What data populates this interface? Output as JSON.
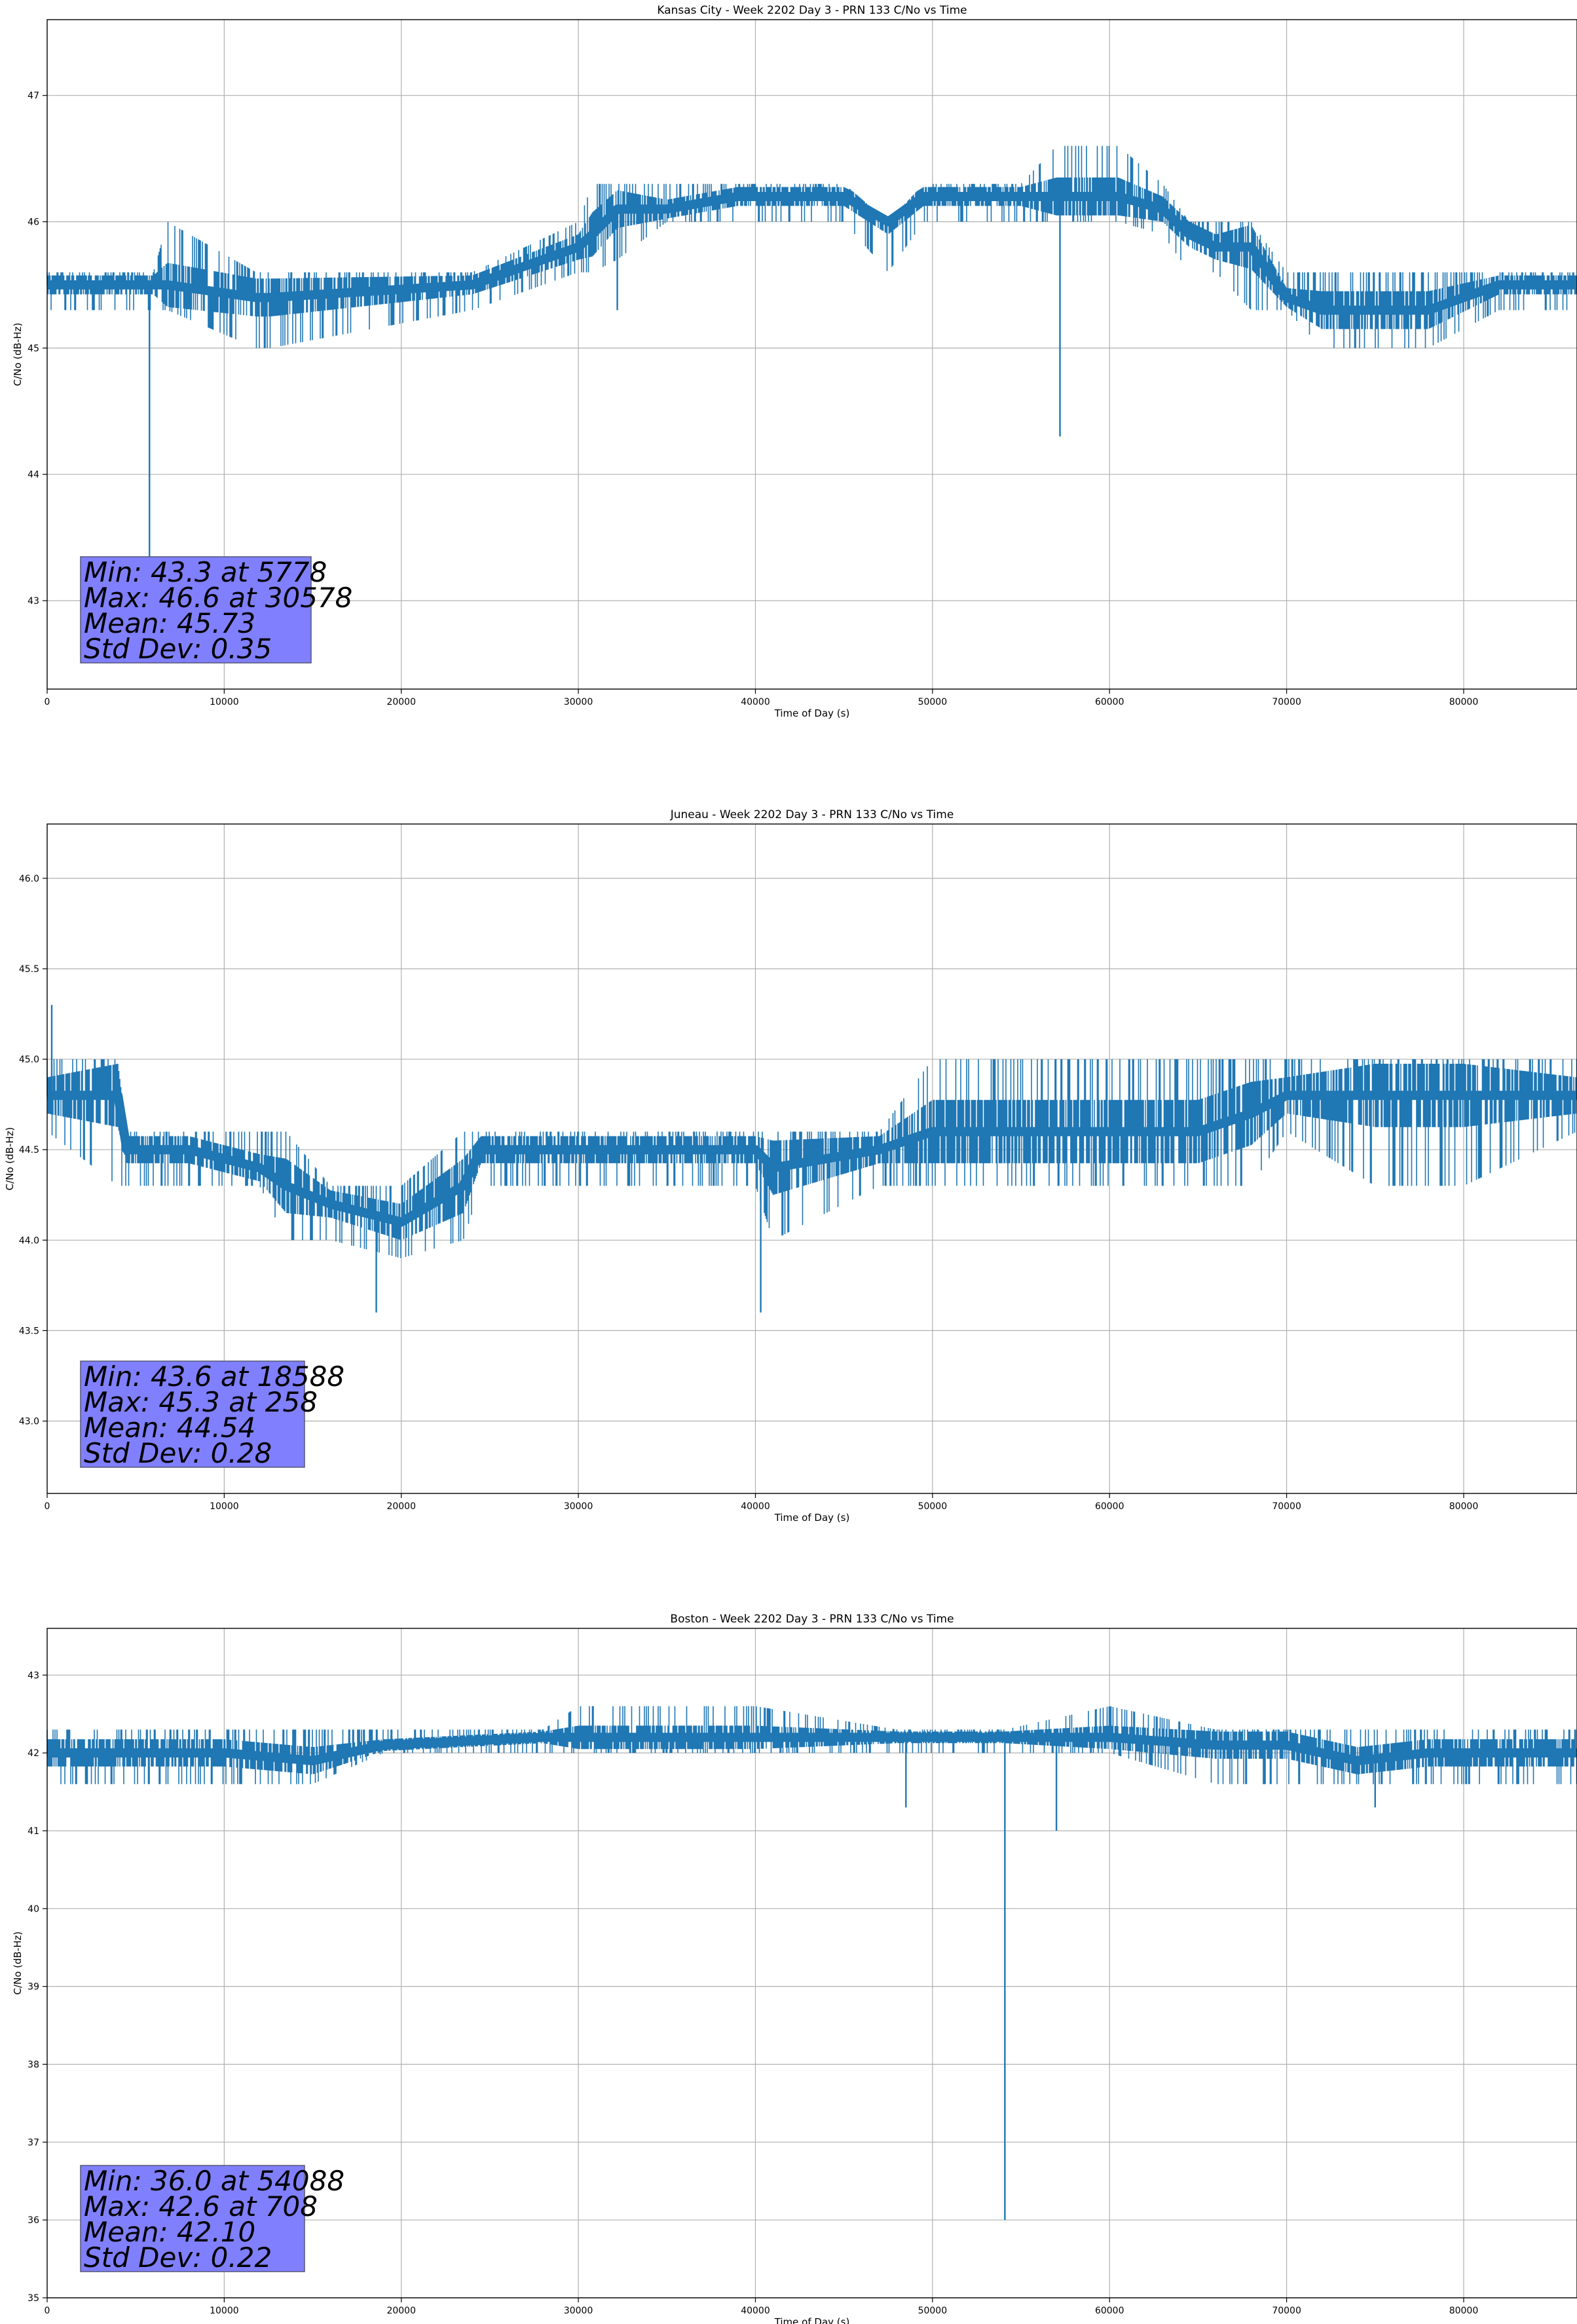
{
  "chart_data": [
    {
      "type": "line",
      "title": "Kansas City - Week 2202 Day 3 - PRN 133 C/No vs Time",
      "xlabel": "Time of Day (s)",
      "ylabel": "C/No (dB-Hz)",
      "xlim": [
        0,
        86400
      ],
      "ylim": [
        42.3,
        47.6
      ],
      "xticks": [
        0,
        10000,
        20000,
        30000,
        40000,
        50000,
        60000,
        70000,
        80000
      ],
      "xtick_labels": [
        "0",
        "10000",
        "20000",
        "30000",
        "40000",
        "50000",
        "60000",
        "70000",
        "80000"
      ],
      "yticks": [
        43,
        44,
        45,
        46,
        47
      ],
      "ytick_labels": [
        "43",
        "44",
        "45",
        "46",
        "47"
      ],
      "grid": true,
      "line_color": "#1f77b4",
      "series": [
        {
          "x": [
            0,
            6000,
            6800,
            11800,
            12600,
            24000,
            30000,
            30800,
            32200,
            35000,
            39000,
            45000,
            47500,
            49500,
            55000,
            57000,
            60500,
            63000,
            64500,
            66000,
            68000,
            70000,
            72000,
            78000,
            82000,
            86400
          ],
          "y": [
            45.5,
            45.5,
            45.5,
            45.4,
            45.4,
            45.5,
            45.8,
            45.9,
            46.1,
            46.1,
            46.2,
            46.2,
            46.0,
            46.2,
            46.2,
            46.2,
            46.2,
            46.1,
            45.9,
            45.8,
            45.8,
            45.4,
            45.3,
            45.3,
            45.5,
            45.5
          ],
          "band_low": [
            45.3,
            45.3,
            45.3,
            45.0,
            45.0,
            45.3,
            45.6,
            45.6,
            45.7,
            46.0,
            46.0,
            46.0,
            45.6,
            46.0,
            46.0,
            46.0,
            46.0,
            45.9,
            45.6,
            45.6,
            45.3,
            45.3,
            45.0,
            45.0,
            45.3,
            45.3
          ],
          "band_high": [
            45.6,
            45.6,
            46.0,
            45.6,
            45.6,
            45.6,
            46.0,
            46.3,
            46.3,
            46.3,
            46.3,
            46.3,
            46.0,
            46.3,
            46.3,
            46.6,
            46.6,
            46.3,
            46.0,
            46.0,
            46.0,
            45.6,
            45.6,
            45.6,
            45.6,
            45.6
          ]
        }
      ],
      "spikes": [
        {
          "x": 5778,
          "y": 43.3
        },
        {
          "x": 57200,
          "y": 44.3
        },
        {
          "x": 32200,
          "y": 45.3
        }
      ],
      "stats": {
        "min": "Min: 43.3 at 5778",
        "max": "Max: 46.6 at 30578",
        "mean": "Mean: 45.73",
        "std": "Std Dev: 0.35"
      },
      "stats_box_color": "#8080ff"
    },
    {
      "type": "line",
      "title": "Juneau - Week 2202 Day 3 - PRN 133 C/No vs Time",
      "xlabel": "Time of Day (s)",
      "ylabel": "C/No (dB-Hz)",
      "xlim": [
        0,
        86400
      ],
      "ylim": [
        42.6,
        46.3
      ],
      "xticks": [
        0,
        10000,
        20000,
        30000,
        40000,
        50000,
        60000,
        70000,
        80000
      ],
      "xtick_labels": [
        "0",
        "10000",
        "20000",
        "30000",
        "40000",
        "50000",
        "60000",
        "70000",
        "80000"
      ],
      "yticks": [
        43.0,
        43.5,
        44.0,
        44.5,
        45.0,
        45.5,
        46.0
      ],
      "ytick_labels": [
        "43.0",
        "43.5",
        "44.0",
        "44.5",
        "45.0",
        "45.5",
        "46.0"
      ],
      "grid": true,
      "line_color": "#1f77b4",
      "series": [
        {
          "x": [
            0,
            4000,
            4500,
            8000,
            12000,
            13500,
            16000,
            20000,
            23500,
            24500,
            30000,
            40000,
            41000,
            47000,
            50000,
            55000,
            60000,
            65000,
            68000,
            70000,
            75000,
            80000,
            86400
          ],
          "y": [
            44.8,
            44.8,
            44.5,
            44.5,
            44.4,
            44.3,
            44.2,
            44.1,
            44.3,
            44.5,
            44.5,
            44.5,
            44.4,
            44.5,
            44.6,
            44.6,
            44.6,
            44.6,
            44.7,
            44.8,
            44.8,
            44.8,
            44.8
          ],
          "band_low": [
            44.6,
            44.3,
            44.3,
            44.3,
            44.3,
            44.0,
            44.0,
            43.9,
            44.0,
            44.3,
            44.3,
            44.3,
            44.0,
            44.3,
            44.3,
            44.3,
            44.3,
            44.3,
            44.3,
            44.6,
            44.3,
            44.3,
            44.6
          ],
          "band_high": [
            45.0,
            45.0,
            44.6,
            44.6,
            44.6,
            44.6,
            44.3,
            44.3,
            44.6,
            44.6,
            44.6,
            44.6,
            44.6,
            44.6,
            45.0,
            45.0,
            45.0,
            45.0,
            45.0,
            45.0,
            45.0,
            45.0,
            45.0
          ]
        }
      ],
      "spikes": [
        {
          "x": 18588,
          "y": 43.6
        },
        {
          "x": 40300,
          "y": 43.6
        },
        {
          "x": 258,
          "y": 45.3
        }
      ],
      "stats": {
        "min": "Min: 43.6 at 18588",
        "max": "Max: 45.3 at 258",
        "mean": "Mean: 44.54",
        "std": "Std Dev: 0.28"
      },
      "stats_box_color": "#8080ff"
    },
    {
      "type": "line",
      "title": "Boston - Week 2202 Day 3 - PRN 133 C/No vs Time",
      "xlabel": "Time of Day (s)",
      "ylabel": "C/No (dB-Hz)",
      "xlim": [
        0,
        86400
      ],
      "ylim": [
        35.0,
        43.6
      ],
      "xticks": [
        0,
        10000,
        20000,
        30000,
        40000,
        50000,
        60000,
        70000,
        80000
      ],
      "xtick_labels": [
        "0",
        "10000",
        "20000",
        "30000",
        "40000",
        "50000",
        "60000",
        "70000",
        "80000"
      ],
      "yticks": [
        35,
        36,
        37,
        38,
        39,
        40,
        41,
        42,
        43
      ],
      "ytick_labels": [
        "35",
        "36",
        "37",
        "38",
        "39",
        "40",
        "41",
        "42",
        "43"
      ],
      "grid": true,
      "line_color": "#1f77b4",
      "series": [
        {
          "x": [
            0,
            5000,
            10000,
            15000,
            19000,
            28000,
            30000,
            40000,
            48000,
            54088,
            60000,
            66000,
            70000,
            74000,
            78000,
            82000,
            86400
          ],
          "y": [
            42.0,
            42.0,
            42.0,
            41.9,
            42.1,
            42.2,
            42.2,
            42.2,
            42.2,
            42.2,
            42.2,
            42.1,
            42.1,
            41.9,
            42.0,
            42.0,
            42.0
          ],
          "band_low": [
            41.6,
            41.6,
            41.6,
            41.6,
            42.0,
            42.0,
            42.0,
            42.0,
            42.0,
            42.0,
            42.0,
            41.6,
            41.6,
            41.6,
            41.6,
            41.6,
            41.6
          ],
          "band_high": [
            42.3,
            42.3,
            42.3,
            42.3,
            42.3,
            42.3,
            42.6,
            42.6,
            42.3,
            42.3,
            42.6,
            42.3,
            42.3,
            42.3,
            42.3,
            42.3,
            42.3
          ]
        }
      ],
      "spikes": [
        {
          "x": 54088,
          "y": 36.0
        },
        {
          "x": 57000,
          "y": 41.0
        },
        {
          "x": 48500,
          "y": 41.3
        },
        {
          "x": 75000,
          "y": 41.3
        }
      ],
      "stats": {
        "min": "Min: 36.0 at 54088",
        "max": "Max: 42.6 at 708",
        "mean": "Mean: 42.10",
        "std": "Std Dev: 0.22"
      },
      "stats_box_color": "#8080ff"
    }
  ]
}
